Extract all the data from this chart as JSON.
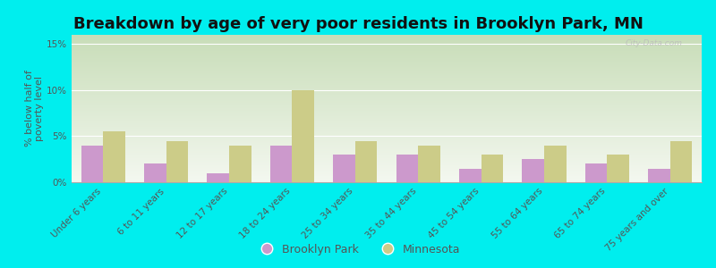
{
  "title": "Breakdown by age of very poor residents in Brooklyn Park, MN",
  "ylabel": "% below half of\npoverty level",
  "categories": [
    "Under 6 years",
    "6 to 11 years",
    "12 to 17 years",
    "18 to 24 years",
    "25 to 34 years",
    "35 to 44 years",
    "45 to 54 years",
    "55 to 64 years",
    "65 to 74 years",
    "75 years and over"
  ],
  "brooklyn_park": [
    4.0,
    2.0,
    1.0,
    4.0,
    3.0,
    3.0,
    1.5,
    2.5,
    2.0,
    1.5
  ],
  "minnesota": [
    5.5,
    4.5,
    4.0,
    10.0,
    4.5,
    4.0,
    3.0,
    4.0,
    3.0,
    4.5
  ],
  "bar_color_bp": "#cc99cc",
  "bar_color_mn": "#cccc88",
  "background_outer": "#00eeee",
  "background_plot_top": "#c8ddb8",
  "background_plot_bottom": "#f4f8f0",
  "ylim": [
    0,
    16
  ],
  "yticks": [
    0,
    5,
    10,
    15
  ],
  "ytick_labels": [
    "0%",
    "5%",
    "10%",
    "15%"
  ],
  "bar_width": 0.35,
  "title_fontsize": 13,
  "axis_label_fontsize": 8,
  "tick_fontsize": 7.5,
  "legend_labels": [
    "Brooklyn Park",
    "Minnesota"
  ],
  "watermark": "City-Data.com"
}
